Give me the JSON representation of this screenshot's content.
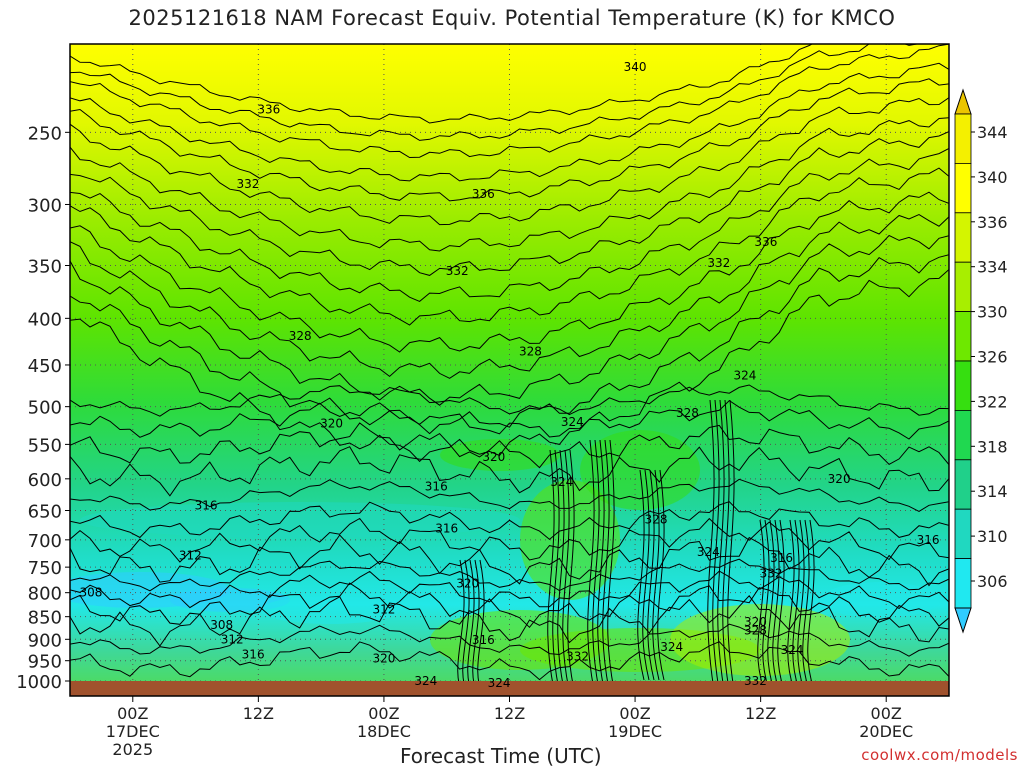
{
  "chart_data": {
    "type": "heatmap",
    "title": "2025121618 NAM Forecast Equiv. Potential Temperature (K) for KMCO",
    "xlabel": "Forecast Time (UTC)",
    "ylabel": "",
    "y_scale": "log-pressure",
    "ylim_hPa": [
      1000,
      200
    ],
    "y_ticks": [
      250,
      300,
      350,
      400,
      450,
      500,
      550,
      600,
      650,
      700,
      750,
      800,
      850,
      900,
      950,
      1000
    ],
    "x_ticks": [
      {
        "hour": 6,
        "l1": "00Z",
        "l2": "17DEC",
        "l3": "2025"
      },
      {
        "hour": 18,
        "l1": "12Z",
        "l2": "",
        "l3": ""
      },
      {
        "hour": 30,
        "l1": "00Z",
        "l2": "18DEC",
        "l3": ""
      },
      {
        "hour": 42,
        "l1": "12Z",
        "l2": "",
        "l3": ""
      },
      {
        "hour": 54,
        "l1": "00Z",
        "l2": "19DEC",
        "l3": ""
      },
      {
        "hour": 66,
        "l1": "12Z",
        "l2": "",
        "l3": ""
      },
      {
        "hour": 78,
        "l1": "00Z",
        "l2": "20DEC",
        "l3": ""
      }
    ],
    "xlim_hours": [
      0,
      84
    ],
    "grid": true,
    "colorbar": {
      "ticks": [
        344,
        340,
        336,
        334,
        330,
        326,
        322,
        318,
        314,
        310,
        306
      ],
      "colors": [
        "#ebc500",
        "#f4f000",
        "#ffff00",
        "#d4f500",
        "#a8ee00",
        "#6ee800",
        "#36df10",
        "#20d850",
        "#20d08a",
        "#20d8c0",
        "#20e8f0",
        "#30ccff"
      ]
    },
    "contour_labels": [
      {
        "text": "340",
        "hour": 54,
        "p": 212
      },
      {
        "text": "336",
        "hour": 19,
        "p": 236
      },
      {
        "text": "336",
        "hour": 39.5,
        "p": 292
      },
      {
        "text": "336",
        "hour": 66.5,
        "p": 330
      },
      {
        "text": "332",
        "hour": 17,
        "p": 285
      },
      {
        "text": "332",
        "hour": 37,
        "p": 355
      },
      {
        "text": "332",
        "hour": 62,
        "p": 348
      },
      {
        "text": "328",
        "hour": 22,
        "p": 418
      },
      {
        "text": "328",
        "hour": 44,
        "p": 435
      },
      {
        "text": "328",
        "hour": 59,
        "p": 508
      },
      {
        "text": "328",
        "hour": 56,
        "p": 665
      },
      {
        "text": "328",
        "hour": 65.5,
        "p": 880
      },
      {
        "text": "324",
        "hour": 64.5,
        "p": 462
      },
      {
        "text": "324",
        "hour": 48,
        "p": 520
      },
      {
        "text": "324",
        "hour": 47,
        "p": 605
      },
      {
        "text": "324",
        "hour": 61,
        "p": 722
      },
      {
        "text": "324",
        "hour": 57.5,
        "p": 918
      },
      {
        "text": "324",
        "hour": 34,
        "p": 1000
      },
      {
        "text": "324",
        "hour": 41,
        "p": 1005
      },
      {
        "text": "324",
        "hour": 69,
        "p": 925
      },
      {
        "text": "320",
        "hour": 25,
        "p": 522
      },
      {
        "text": "320",
        "hour": 40.5,
        "p": 568
      },
      {
        "text": "320",
        "hour": 73.5,
        "p": 600
      },
      {
        "text": "320",
        "hour": 38,
        "p": 782
      },
      {
        "text": "320",
        "hour": 30,
        "p": 945
      },
      {
        "text": "320",
        "hour": 65.5,
        "p": 862
      },
      {
        "text": "316",
        "hour": 13,
        "p": 642
      },
      {
        "text": "316",
        "hour": 35,
        "p": 612
      },
      {
        "text": "316",
        "hour": 36,
        "p": 680
      },
      {
        "text": "316",
        "hour": 39.5,
        "p": 902
      },
      {
        "text": "316",
        "hour": 17.5,
        "p": 935
      },
      {
        "text": "316",
        "hour": 68,
        "p": 733
      },
      {
        "text": "316",
        "hour": 82,
        "p": 700
      },
      {
        "text": "312",
        "hour": 11.5,
        "p": 728
      },
      {
        "text": "312",
        "hour": 30,
        "p": 835
      },
      {
        "text": "312",
        "hour": 15.5,
        "p": 900
      },
      {
        "text": "308",
        "hour": 2,
        "p": 800
      },
      {
        "text": "308",
        "hour": 14.5,
        "p": 868
      },
      {
        "text": "332",
        "hour": 67,
        "p": 762
      },
      {
        "text": "332",
        "hour": 65.5,
        "p": 1000
      },
      {
        "text": "332",
        "hour": 48.5,
        "p": 940
      }
    ]
  },
  "credit": "coolwx.com/models"
}
